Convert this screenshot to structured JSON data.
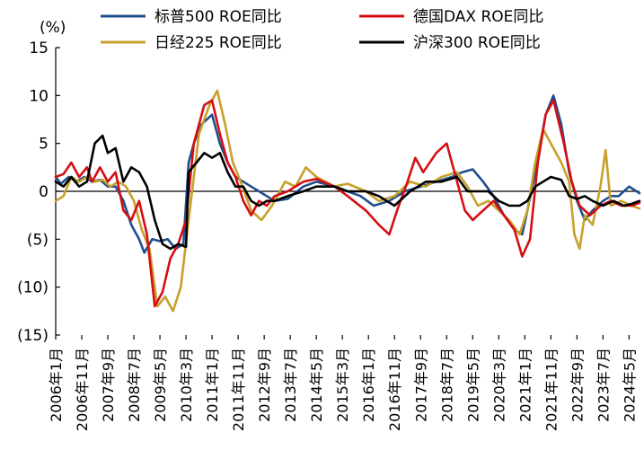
{
  "chart_data": {
    "type": "line",
    "unit_label": "(%)",
    "ylim": [
      -15,
      15
    ],
    "y_ticks": [
      15,
      10,
      5,
      0,
      -5,
      -10,
      -15
    ],
    "y_tick_labels": [
      "15",
      "10",
      "5",
      "0",
      "(5)",
      "(10)",
      "(15)"
    ],
    "x_ticks": [
      "2006年1月",
      "2006年11月",
      "2007年9月",
      "2008年7月",
      "2009年5月",
      "2010年3月",
      "2011年1月",
      "2011年11月",
      "2012年9月",
      "2013年7月",
      "2014年5月",
      "2015年3月",
      "2016年1月",
      "2016年11月",
      "2017年9月",
      "2018年7月",
      "2019年5月",
      "2020年3月",
      "2021年1月",
      "2021年11月",
      "2022年9月",
      "2023年7月",
      "2024年5月"
    ],
    "x_start": "2006-01",
    "x_end": "2024-09",
    "grid": false,
    "legend_position": "top",
    "series": [
      {
        "name": "标普500 ROE同比",
        "color": "#1f4e8c",
        "points": [
          [
            "2006-01",
            1.5
          ],
          [
            "2006-03",
            0.8
          ],
          [
            "2006-06",
            1.5
          ],
          [
            "2006-09",
            1.0
          ],
          [
            "2006-12",
            1.5
          ],
          [
            "2007-03",
            1.0
          ],
          [
            "2007-06",
            1.2
          ],
          [
            "2007-09",
            0.5
          ],
          [
            "2007-12",
            0.5
          ],
          [
            "2008-03",
            -1.0
          ],
          [
            "2008-06",
            -3.5
          ],
          [
            "2008-09",
            -5.0
          ],
          [
            "2008-11",
            -6.4
          ],
          [
            "2009-02",
            -5.0
          ],
          [
            "2009-05",
            -5.2
          ],
          [
            "2009-08",
            -5.0
          ],
          [
            "2009-11",
            -6.0
          ],
          [
            "2010-02",
            -5.5
          ],
          [
            "2010-04",
            3.0
          ],
          [
            "2010-06",
            5.0
          ],
          [
            "2010-09",
            7.0
          ],
          [
            "2011-01",
            8.0
          ],
          [
            "2011-04",
            5.0
          ],
          [
            "2011-07",
            3.0
          ],
          [
            "2011-10",
            1.5
          ],
          [
            "2012-01",
            1.0
          ],
          [
            "2012-04",
            0.5
          ],
          [
            "2012-07",
            0.0
          ],
          [
            "2012-10",
            -0.5
          ],
          [
            "2013-01",
            -1.0
          ],
          [
            "2013-06",
            -0.8
          ],
          [
            "2013-12",
            0.5
          ],
          [
            "2014-05",
            1.0
          ],
          [
            "2014-12",
            0.5
          ],
          [
            "2015-05",
            0.0
          ],
          [
            "2015-10",
            -0.5
          ],
          [
            "2016-03",
            -1.5
          ],
          [
            "2016-09",
            -1.0
          ],
          [
            "2017-03",
            0.0
          ],
          [
            "2017-09",
            0.5
          ],
          [
            "2018-03",
            1.0
          ],
          [
            "2018-09",
            1.5
          ],
          [
            "2019-01",
            2.0
          ],
          [
            "2019-05",
            2.3
          ],
          [
            "2019-09",
            1.0
          ],
          [
            "2020-01",
            -0.5
          ],
          [
            "2020-05",
            -2.5
          ],
          [
            "2020-09",
            -4.0
          ],
          [
            "2020-12",
            -4.5
          ],
          [
            "2021-02",
            -2.0
          ],
          [
            "2021-05",
            2.0
          ],
          [
            "2021-09",
            8.0
          ],
          [
            "2021-12",
            10.0
          ],
          [
            "2022-03",
            7.0
          ],
          [
            "2022-06",
            2.0
          ],
          [
            "2022-09",
            -1.0
          ],
          [
            "2022-12",
            -3.0
          ],
          [
            "2023-03",
            -2.0
          ],
          [
            "2023-07",
            -1.0
          ],
          [
            "2023-10",
            -0.5
          ],
          [
            "2024-01",
            -0.5
          ],
          [
            "2024-05",
            0.5
          ],
          [
            "2024-09",
            -0.2
          ]
        ]
      },
      {
        "name": "德国DAX ROE同比",
        "color": "#d40f14",
        "points": [
          [
            "2006-01",
            1.5
          ],
          [
            "2006-04",
            1.8
          ],
          [
            "2006-07",
            3.0
          ],
          [
            "2006-10",
            1.5
          ],
          [
            "2007-01",
            2.5
          ],
          [
            "2007-03",
            1.0
          ],
          [
            "2007-06",
            2.5
          ],
          [
            "2007-09",
            1.0
          ],
          [
            "2007-12",
            2.0
          ],
          [
            "2008-03",
            -2.0
          ],
          [
            "2008-06",
            -3.0
          ],
          [
            "2008-09",
            -1.0
          ],
          [
            "2008-12",
            -4.5
          ],
          [
            "2009-03",
            -12.0
          ],
          [
            "2009-06",
            -10.5
          ],
          [
            "2009-09",
            -7.0
          ],
          [
            "2009-12",
            -5.5
          ],
          [
            "2010-03",
            -3.0
          ],
          [
            "2010-06",
            5.0
          ],
          [
            "2010-10",
            9.0
          ],
          [
            "2011-01",
            9.5
          ],
          [
            "2011-04",
            6.0
          ],
          [
            "2011-07",
            3.0
          ],
          [
            "2011-10",
            1.5
          ],
          [
            "2012-01",
            -1.0
          ],
          [
            "2012-04",
            -2.5
          ],
          [
            "2012-07",
            -1.0
          ],
          [
            "2012-10",
            -1.5
          ],
          [
            "2013-01",
            -0.5
          ],
          [
            "2013-06",
            0.0
          ],
          [
            "2013-12",
            1.0
          ],
          [
            "2014-05",
            1.3
          ],
          [
            "2014-12",
            0.5
          ],
          [
            "2015-05",
            -0.5
          ],
          [
            "2015-12",
            -2.0
          ],
          [
            "2016-05",
            -3.5
          ],
          [
            "2016-09",
            -4.5
          ],
          [
            "2016-12",
            -2.0
          ],
          [
            "2017-04",
            1.0
          ],
          [
            "2017-07",
            3.5
          ],
          [
            "2017-10",
            2.0
          ],
          [
            "2018-03",
            4.0
          ],
          [
            "2018-07",
            5.0
          ],
          [
            "2018-11",
            1.0
          ],
          [
            "2019-02",
            -2.0
          ],
          [
            "2019-05",
            -3.0
          ],
          [
            "2019-09",
            -2.0
          ],
          [
            "2020-01",
            -1.0
          ],
          [
            "2020-05",
            -2.5
          ],
          [
            "2020-09",
            -4.0
          ],
          [
            "2020-12",
            -6.8
          ],
          [
            "2021-03",
            -5.0
          ],
          [
            "2021-06",
            3.0
          ],
          [
            "2021-09",
            8.0
          ],
          [
            "2021-12",
            9.5
          ],
          [
            "2022-04",
            5.0
          ],
          [
            "2022-07",
            1.0
          ],
          [
            "2022-10",
            -1.5
          ],
          [
            "2023-02",
            -2.5
          ],
          [
            "2023-06",
            -1.5
          ],
          [
            "2023-10",
            -1.0
          ],
          [
            "2024-02",
            -1.5
          ],
          [
            "2024-06",
            -1.5
          ],
          [
            "2024-09",
            -1.2
          ]
        ]
      },
      {
        "name": "日经225 ROE同比",
        "color": "#c8a02a",
        "points": [
          [
            "2006-01",
            -1.0
          ],
          [
            "2006-04",
            -0.5
          ],
          [
            "2006-07",
            1.5
          ],
          [
            "2006-10",
            1.0
          ],
          [
            "2007-01",
            1.5
          ],
          [
            "2007-04",
            1.0
          ],
          [
            "2007-07",
            1.2
          ],
          [
            "2007-10",
            0.5
          ],
          [
            "2008-01",
            1.0
          ],
          [
            "2008-04",
            0.5
          ],
          [
            "2008-07",
            -1.0
          ],
          [
            "2008-10",
            -4.0
          ],
          [
            "2009-01",
            -6.0
          ],
          [
            "2009-04",
            -12.0
          ],
          [
            "2009-07",
            -11.0
          ],
          [
            "2009-10",
            -12.5
          ],
          [
            "2010-01",
            -10.0
          ],
          [
            "2010-04",
            -3.0
          ],
          [
            "2010-08",
            6.0
          ],
          [
            "2010-12",
            9.0
          ],
          [
            "2011-03",
            10.5
          ],
          [
            "2011-06",
            7.0
          ],
          [
            "2011-09",
            3.0
          ],
          [
            "2011-12",
            1.0
          ],
          [
            "2012-04",
            -2.0
          ],
          [
            "2012-08",
            -3.0
          ],
          [
            "2012-12",
            -1.5
          ],
          [
            "2013-05",
            1.0
          ],
          [
            "2013-09",
            0.5
          ],
          [
            "2014-01",
            2.5
          ],
          [
            "2014-05",
            1.5
          ],
          [
            "2014-12",
            0.5
          ],
          [
            "2015-05",
            0.8
          ],
          [
            "2015-12",
            0.0
          ],
          [
            "2016-05",
            -1.0
          ],
          [
            "2016-11",
            -0.5
          ],
          [
            "2017-05",
            1.0
          ],
          [
            "2017-11",
            0.5
          ],
          [
            "2018-05",
            1.5
          ],
          [
            "2018-11",
            2.0
          ],
          [
            "2019-03",
            0.5
          ],
          [
            "2019-07",
            -1.5
          ],
          [
            "2019-11",
            -1.0
          ],
          [
            "2020-03",
            -2.0
          ],
          [
            "2020-07",
            -3.0
          ],
          [
            "2020-11",
            -4.5
          ],
          [
            "2021-02",
            -2.0
          ],
          [
            "2021-05",
            3.0
          ],
          [
            "2021-08",
            6.5
          ],
          [
            "2021-11",
            5.0
          ],
          [
            "2022-03",
            3.0
          ],
          [
            "2022-06",
            1.0
          ],
          [
            "2022-08",
            -4.5
          ],
          [
            "2022-10",
            -6.0
          ],
          [
            "2022-12",
            -2.5
          ],
          [
            "2023-03",
            -3.5
          ],
          [
            "2023-06",
            0.5
          ],
          [
            "2023-08",
            4.3
          ],
          [
            "2023-10",
            -1.5
          ],
          [
            "2024-02",
            -1.0
          ],
          [
            "2024-06",
            -1.5
          ],
          [
            "2024-09",
            -1.8
          ]
        ]
      },
      {
        "name": "沪深300 ROE同比",
        "color": "#000000",
        "points": [
          [
            "2006-01",
            1.0
          ],
          [
            "2006-04",
            0.5
          ],
          [
            "2006-07",
            1.5
          ],
          [
            "2006-10",
            0.5
          ],
          [
            "2007-01",
            1.0
          ],
          [
            "2007-04",
            5.0
          ],
          [
            "2007-07",
            5.8
          ],
          [
            "2007-09",
            4.0
          ],
          [
            "2007-12",
            4.5
          ],
          [
            "2008-03",
            1.0
          ],
          [
            "2008-06",
            2.5
          ],
          [
            "2008-09",
            2.0
          ],
          [
            "2008-12",
            0.5
          ],
          [
            "2009-03",
            -3.0
          ],
          [
            "2009-06",
            -5.5
          ],
          [
            "2009-09",
            -6.0
          ],
          [
            "2009-12",
            -5.5
          ],
          [
            "2010-03",
            -5.8
          ],
          [
            "2010-04",
            2.0
          ],
          [
            "2010-07",
            3.0
          ],
          [
            "2010-10",
            4.0
          ],
          [
            "2011-01",
            3.5
          ],
          [
            "2011-04",
            4.0
          ],
          [
            "2011-07",
            2.0
          ],
          [
            "2011-10",
            0.5
          ],
          [
            "2012-01",
            0.5
          ],
          [
            "2012-04",
            -1.0
          ],
          [
            "2012-07",
            -1.5
          ],
          [
            "2012-10",
            -1.0
          ],
          [
            "2013-01",
            -1.0
          ],
          [
            "2013-06",
            -0.5
          ],
          [
            "2013-12",
            0.0
          ],
          [
            "2014-05",
            0.5
          ],
          [
            "2014-12",
            0.5
          ],
          [
            "2015-05",
            0.0
          ],
          [
            "2015-12",
            0.0
          ],
          [
            "2016-05",
            -0.5
          ],
          [
            "2016-11",
            -1.5
          ],
          [
            "2017-05",
            0.0
          ],
          [
            "2017-11",
            1.0
          ],
          [
            "2018-05",
            1.0
          ],
          [
            "2018-11",
            1.5
          ],
          [
            "2019-03",
            0.0
          ],
          [
            "2019-07",
            0.0
          ],
          [
            "2019-11",
            0.0
          ],
          [
            "2020-03",
            -1.0
          ],
          [
            "2020-07",
            -1.5
          ],
          [
            "2020-11",
            -1.5
          ],
          [
            "2021-02",
            -1.0
          ],
          [
            "2021-05",
            0.5
          ],
          [
            "2021-08",
            1.0
          ],
          [
            "2021-11",
            1.5
          ],
          [
            "2022-03",
            1.2
          ],
          [
            "2022-06",
            -0.5
          ],
          [
            "2022-09",
            -0.8
          ],
          [
            "2022-12",
            -0.5
          ],
          [
            "2023-03",
            -1.0
          ],
          [
            "2023-07",
            -1.5
          ],
          [
            "2023-11",
            -1.0
          ],
          [
            "2024-03",
            -1.5
          ],
          [
            "2024-06",
            -1.3
          ],
          [
            "2024-09",
            -1.0
          ]
        ]
      }
    ]
  }
}
